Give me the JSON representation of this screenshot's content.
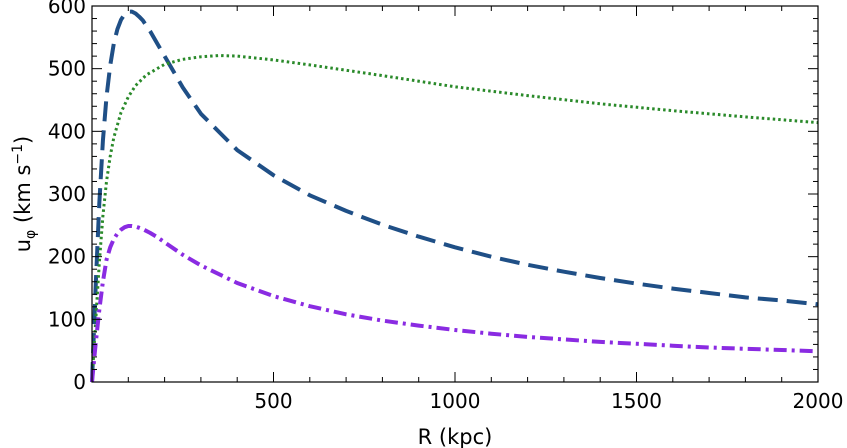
{
  "chart_data": {
    "type": "line",
    "title": "",
    "xlabel": "R (kpc)",
    "ylabel_main": "u",
    "ylabel_subscript": "φ",
    "ylabel_units_open": " (km s",
    "ylabel_units_superscript": "−1",
    "ylabel_units_close": ")",
    "xlim": [
      0,
      2000
    ],
    "ylim": [
      0,
      600
    ],
    "xticks": [
      500,
      1000,
      1500,
      2000
    ],
    "xtick_labels": [
      "500",
      "1000",
      "1500",
      "2000"
    ],
    "yticks": [
      0,
      100,
      200,
      300,
      400,
      500,
      600
    ],
    "ytick_labels": [
      "0",
      "100",
      "200",
      "300",
      "400",
      "500",
      "600"
    ],
    "x_minor_step": 100,
    "y_minor_step": 20,
    "grid": false,
    "legend": "none",
    "series": [
      {
        "style": "dashed",
        "color": "#1f4f86",
        "x": [
          0,
          10,
          20,
          30,
          40,
          50,
          60,
          70,
          80,
          90,
          100,
          110,
          120,
          130,
          140,
          160,
          180,
          200,
          250,
          300,
          400,
          500,
          600,
          700,
          800,
          900,
          1000,
          1100,
          1200,
          1300,
          1400,
          1500,
          1600,
          1700,
          1800,
          1900,
          2000
        ],
        "y": [
          0,
          150,
          285,
          385,
          455,
          505,
          540,
          563,
          578,
          587,
          591,
          591,
          588,
          583,
          577,
          560,
          540,
          520,
          470,
          428,
          370,
          330,
          298,
          273,
          251,
          232,
          215,
          200,
          187,
          176,
          166,
          157,
          149,
          142,
          135,
          130,
          124
        ]
      },
      {
        "style": "dotted",
        "color": "#2a8a2a",
        "x": [
          0,
          10,
          20,
          30,
          40,
          50,
          60,
          80,
          100,
          120,
          150,
          200,
          250,
          300,
          350,
          400,
          500,
          600,
          800,
          1000,
          1200,
          1400,
          1600,
          1800,
          2000
        ],
        "y": [
          0,
          95,
          190,
          265,
          320,
          360,
          390,
          430,
          455,
          473,
          490,
          507,
          515,
          519,
          521,
          520,
          514,
          506,
          489,
          471,
          457,
          444,
          433,
          423,
          414
        ]
      },
      {
        "style": "dashdot",
        "color": "#8a2be2",
        "x": [
          0,
          10,
          20,
          30,
          40,
          50,
          60,
          70,
          80,
          90,
          100,
          110,
          120,
          130,
          140,
          160,
          180,
          200,
          250,
          300,
          400,
          500,
          600,
          700,
          800,
          900,
          1000,
          1100,
          1200,
          1300,
          1400,
          1500,
          1600,
          1700,
          1800,
          1900,
          2000
        ],
        "y": [
          0,
          60,
          115,
          160,
          195,
          215,
          228,
          237,
          243,
          247,
          249,
          249,
          248,
          246,
          244,
          238,
          231,
          223,
          203,
          186,
          158,
          137,
          121,
          108,
          98,
          90,
          83,
          77,
          72,
          68,
          64,
          61,
          58,
          55,
          53,
          51,
          49
        ]
      }
    ]
  }
}
